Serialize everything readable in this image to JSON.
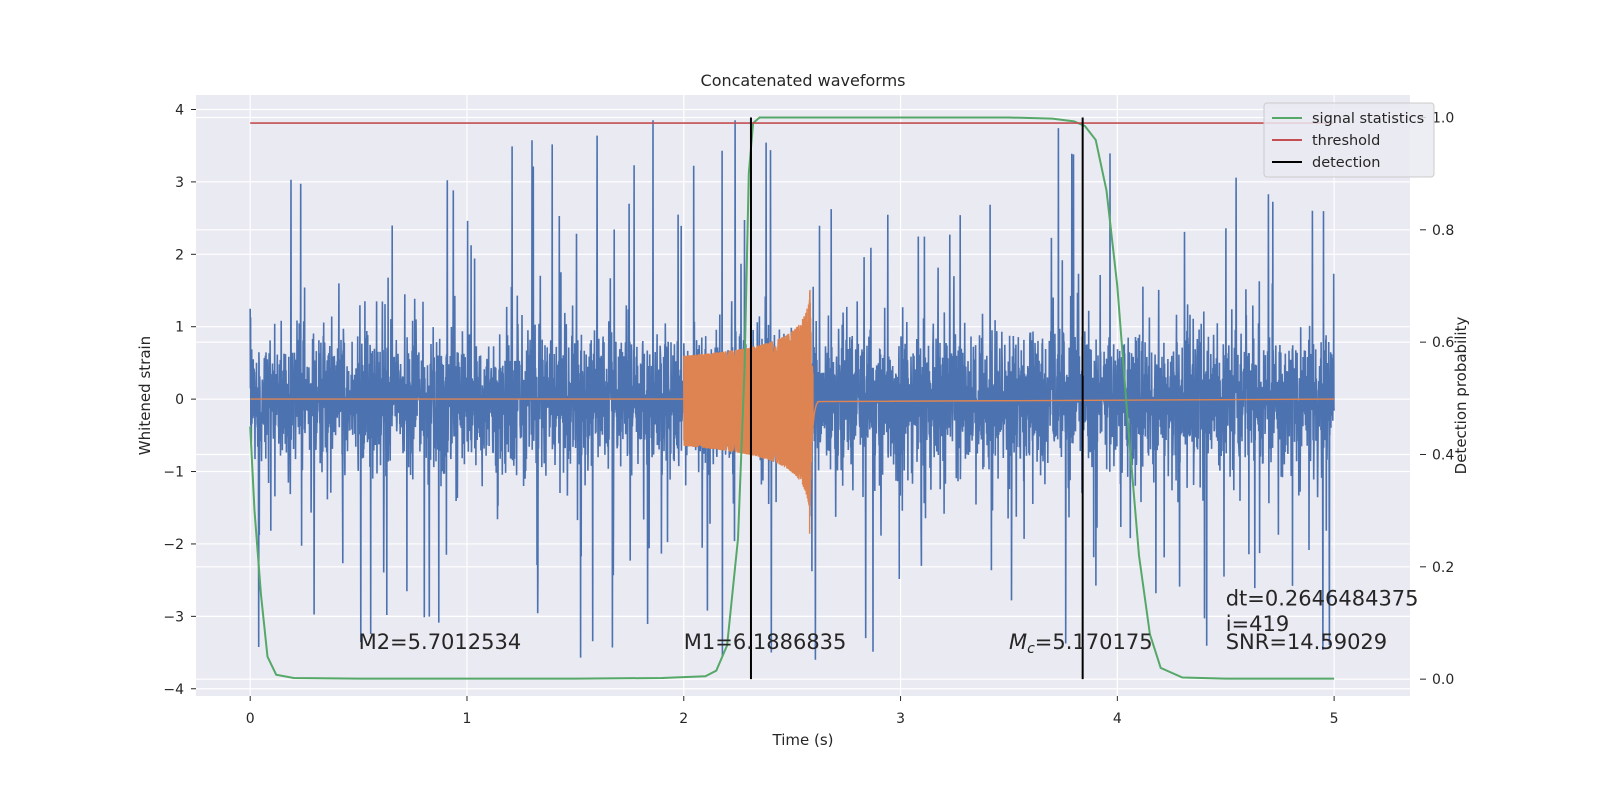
{
  "chart_data": {
    "type": "line",
    "title": "Concatenated waveforms",
    "xlabel": "Time (s)",
    "ylabel": "Whitened strain",
    "y2label": "Detection probability",
    "xlim": [
      -0.25,
      5.35
    ],
    "ylim": [
      -4.1,
      4.2
    ],
    "y2lim": [
      -0.03,
      1.04
    ],
    "xticks": [
      0,
      1,
      2,
      3,
      4,
      5
    ],
    "yticks": [
      -4,
      -3,
      -2,
      -1,
      0,
      1,
      2,
      3,
      4
    ],
    "y2ticks": [
      0.0,
      0.2,
      0.4,
      0.6,
      0.8,
      1.0
    ],
    "xtick_labels": [
      "0",
      "1",
      "2",
      "3",
      "4",
      "5"
    ],
    "ytick_labels": [
      "−4",
      "−3",
      "−2",
      "−1",
      "0",
      "1",
      "2",
      "3",
      "4"
    ],
    "y2tick_labels": [
      "0.0",
      "0.2",
      "0.4",
      "0.6",
      "0.8",
      "1.0"
    ],
    "grid": true,
    "legend_position": "top-right",
    "series": [
      {
        "name": "",
        "axis": "left",
        "color": "#4c72b0",
        "kind": "noisy strain",
        "x_range": [
          0,
          5
        ],
        "y_range": [
          -3.6,
          3.85
        ],
        "typical_amplitude": 1.2
      },
      {
        "name": "",
        "axis": "left",
        "color": "#dd8452",
        "kind": "chirp waveform",
        "x_start": 2.0,
        "x_merger": 2.58,
        "x_ringdown_end": 2.62,
        "amplitude_start": 0.6,
        "amplitude_peak_upper": 1.9,
        "amplitude_peak_lower": -2.15
      },
      {
        "name": "signal statistics",
        "axis": "right",
        "color": "#55a868",
        "x": [
          0.0,
          0.02,
          0.05,
          0.08,
          0.12,
          0.2,
          0.5,
          1.0,
          1.5,
          1.9,
          2.1,
          2.15,
          2.2,
          2.25,
          2.28,
          2.3,
          2.32,
          2.35,
          2.5,
          3.0,
          3.5,
          3.7,
          3.8,
          3.85,
          3.9,
          3.95,
          4.0,
          4.05,
          4.1,
          4.15,
          4.2,
          4.3,
          4.5,
          5.0
        ],
        "y": [
          0.45,
          0.3,
          0.15,
          0.04,
          0.008,
          0.002,
          0.001,
          0.001,
          0.001,
          0.002,
          0.005,
          0.015,
          0.06,
          0.25,
          0.55,
          0.9,
          0.99,
          1.0,
          1.0,
          1.0,
          1.0,
          0.998,
          0.993,
          0.985,
          0.96,
          0.87,
          0.7,
          0.45,
          0.22,
          0.08,
          0.02,
          0.003,
          0.001,
          0.001
        ]
      },
      {
        "name": "threshold",
        "axis": "right",
        "color": "#c44e52",
        "x": [
          0,
          5
        ],
        "y": [
          0.99,
          0.99
        ]
      },
      {
        "name": "detection",
        "axis": "right",
        "color": "#000000",
        "kind": "vertical lines",
        "x": [
          2.31,
          3.84
        ],
        "y_range": [
          0.0,
          1.0
        ]
      }
    ],
    "annotations": [
      {
        "text": "M2=5.7012534",
        "x": 0.5,
        "y": -3.45
      },
      {
        "text": "M1=6.1886835",
        "x": 2.0,
        "y": -3.45
      },
      {
        "text": "=5.170175",
        "prefix_italic": "M",
        "prefix_sub": "c",
        "x": 3.5,
        "y": -3.45
      },
      {
        "text": "dt=0.2646484375",
        "x": 4.5,
        "y": -2.85
      },
      {
        "text": " i=419",
        "x": 4.5,
        "y": -3.2
      },
      {
        "text": "SNR=14.59029",
        "x": 4.5,
        "y": -3.45
      }
    ]
  }
}
